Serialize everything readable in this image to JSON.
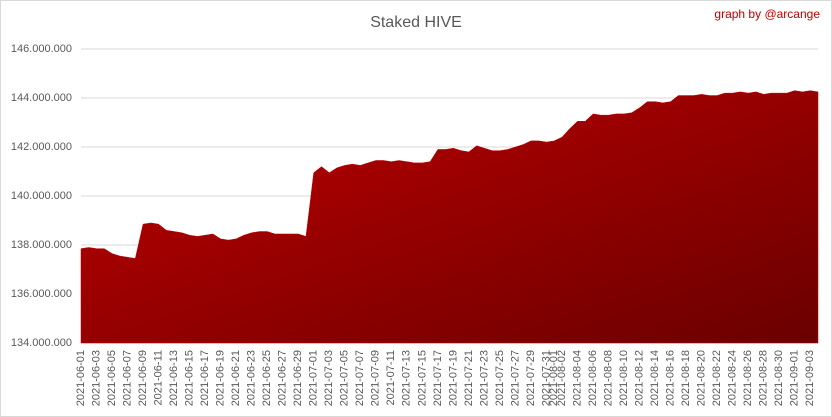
{
  "chart_data": {
    "type": "area",
    "title": "Staked HIVE",
    "credit": "graph by @arcange",
    "categories": [
      "2021-06-01",
      null,
      "2021-06-03",
      null,
      "2021-06-05",
      null,
      "2021-06-07",
      null,
      "2021-06-09",
      null,
      "2021-06-11",
      null,
      "2021-06-13",
      null,
      "2021-06-15",
      null,
      "2021-06-17",
      null,
      "2021-06-19",
      null,
      "2021-06-21",
      null,
      "2021-06-23",
      null,
      "2021-06-25",
      null,
      "2021-06-27",
      null,
      "2021-06-29",
      null,
      "2021-07-01",
      null,
      "2021-07-03",
      null,
      "2021-07-05",
      null,
      "2021-07-07",
      null,
      "2021-07-09",
      null,
      "2021-07-11",
      null,
      "2021-07-13",
      null,
      "2021-07-15",
      null,
      "2021-07-17",
      null,
      "2021-07-19",
      null,
      "2021-07-21",
      null,
      "2021-07-23",
      null,
      "2021-07-25",
      null,
      "2021-07-27",
      null,
      "2021-07-29",
      null,
      "2021-07-31",
      "2021-08-01",
      "2021-08-02",
      null,
      "2021-08-04",
      null,
      "2021-08-06",
      null,
      "2021-08-08",
      null,
      "2021-08-10",
      null,
      "2021-08-12",
      null,
      "2021-08-14",
      null,
      "2021-08-16",
      null,
      "2021-08-18",
      null,
      "2021-08-20",
      null,
      "2021-08-22",
      null,
      "2021-08-24",
      null,
      "2021-08-26",
      null,
      "2021-08-28",
      null,
      "2021-08-30",
      null,
      "2021-09-01",
      null,
      "2021-09-03",
      null
    ],
    "values": [
      137850000,
      137900000,
      137850000,
      137850000,
      137650000,
      137550000,
      137500000,
      137450000,
      138850000,
      138900000,
      138850000,
      138600000,
      138550000,
      138500000,
      138400000,
      138350000,
      138400000,
      138450000,
      138250000,
      138200000,
      138250000,
      138400000,
      138500000,
      138550000,
      138550000,
      138450000,
      138450000,
      138450000,
      138450000,
      138350000,
      140950000,
      141200000,
      140950000,
      141150000,
      141250000,
      141300000,
      141250000,
      141350000,
      141450000,
      141450000,
      141400000,
      141450000,
      141400000,
      141350000,
      141350000,
      141400000,
      141900000,
      141900000,
      141950000,
      141850000,
      141800000,
      142050000,
      141950000,
      141850000,
      141850000,
      141900000,
      142000000,
      142100000,
      142250000,
      142250000,
      142200000,
      142250000,
      142400000,
      142750000,
      143050000,
      143050000,
      143350000,
      143300000,
      143300000,
      143350000,
      143350000,
      143400000,
      143600000,
      143850000,
      143850000,
      143800000,
      143850000,
      144100000,
      144100000,
      144100000,
      144150000,
      144100000,
      144100000,
      144200000,
      144200000,
      144250000,
      144200000,
      144250000,
      144150000,
      144200000,
      144200000,
      144200000,
      144300000,
      144250000,
      144300000,
      144250000
    ],
    "ylim": [
      134000000,
      146000000
    ],
    "yticks": [
      {
        "value": 134000000,
        "label": "134.000.000"
      },
      {
        "value": 136000000,
        "label": "136.000.000"
      },
      {
        "value": 138000000,
        "label": "138.000.000"
      },
      {
        "value": 140000000,
        "label": "140.000.000"
      },
      {
        "value": 142000000,
        "label": "142.000.000"
      },
      {
        "value": 144000000,
        "label": "144.000.000"
      },
      {
        "value": 146000000,
        "label": "146.000.000"
      }
    ],
    "grid": true,
    "color": "#c00000"
  }
}
